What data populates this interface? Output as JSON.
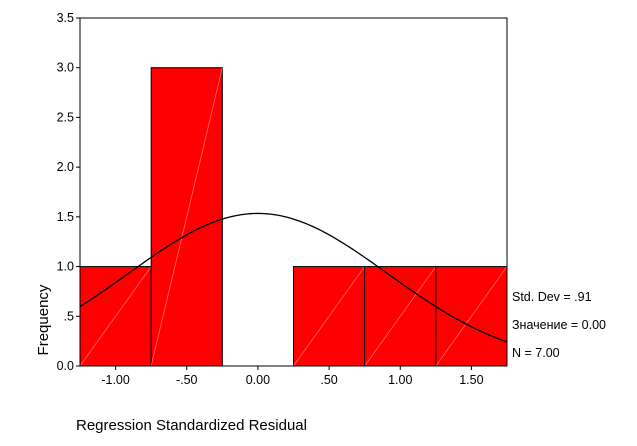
{
  "chart_data": {
    "type": "histogram",
    "xlabel": "Regression Standardized Residual",
    "ylabel": "Frequency",
    "bins": [
      {
        "from": -1.25,
        "to": -0.75,
        "count": 1
      },
      {
        "from": -0.75,
        "to": -0.25,
        "count": 3
      },
      {
        "from": -0.25,
        "to": 0.25,
        "count": 0
      },
      {
        "from": 0.25,
        "to": 0.75,
        "count": 1
      },
      {
        "from": 0.75,
        "to": 1.25,
        "count": 1
      },
      {
        "from": 1.25,
        "to": 1.75,
        "count": 1
      }
    ],
    "x_ticks": [
      {
        "value": -1.0,
        "label": "-1.00"
      },
      {
        "value": -0.5,
        "label": "-.50"
      },
      {
        "value": 0.0,
        "label": "0.00"
      },
      {
        "value": 0.5,
        "label": ".50"
      },
      {
        "value": 1.0,
        "label": "1.00"
      },
      {
        "value": 1.5,
        "label": "1.50"
      }
    ],
    "y_ticks": [
      {
        "value": 0.0,
        "label": "0.0"
      },
      {
        "value": 0.5,
        "label": ".5"
      },
      {
        "value": 1.0,
        "label": "1.0"
      },
      {
        "value": 1.5,
        "label": "1.5"
      },
      {
        "value": 2.0,
        "label": "2.0"
      },
      {
        "value": 2.5,
        "label": "2.5"
      },
      {
        "value": 3.0,
        "label": "3.0"
      },
      {
        "value": 3.5,
        "label": "3.5"
      }
    ],
    "xlim": [
      -1.25,
      1.75
    ],
    "ylim": [
      0,
      3.5
    ],
    "normal_curve": {
      "mean": 0.0,
      "std_dev": 0.91,
      "n": 7,
      "bin_width": 0.5
    },
    "stats": {
      "std_dev": "Std. Dev = .91",
      "mean": "Значение = 0.00",
      "n": "N = 7.00"
    },
    "colors": {
      "bar_fill": "#ff0000",
      "bar_stroke": "#000000",
      "curve": "#000000"
    },
    "grid": false,
    "legend": "none"
  }
}
